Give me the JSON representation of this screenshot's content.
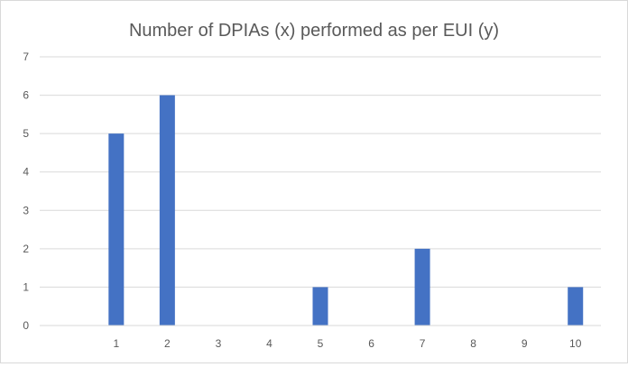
{
  "chart_data": {
    "type": "bar",
    "title": "Number of DPIAs (x) performed as per EUI (y)",
    "xlabel": "",
    "ylabel": "",
    "categories": [
      "",
      "1",
      "2",
      "3",
      "4",
      "5",
      "6",
      "7",
      "8",
      "9",
      "10"
    ],
    "values": [
      0,
      5,
      6,
      0,
      0,
      1,
      0,
      2,
      0,
      0,
      1
    ],
    "ylim": [
      0,
      7
    ],
    "yticks": [
      0,
      1,
      2,
      3,
      4,
      5,
      6,
      7
    ],
    "grid": "horizontal",
    "legend": "none",
    "colors": {
      "bar": "#4472c4",
      "grid": "#d9d9d9",
      "text": "#595959"
    }
  }
}
